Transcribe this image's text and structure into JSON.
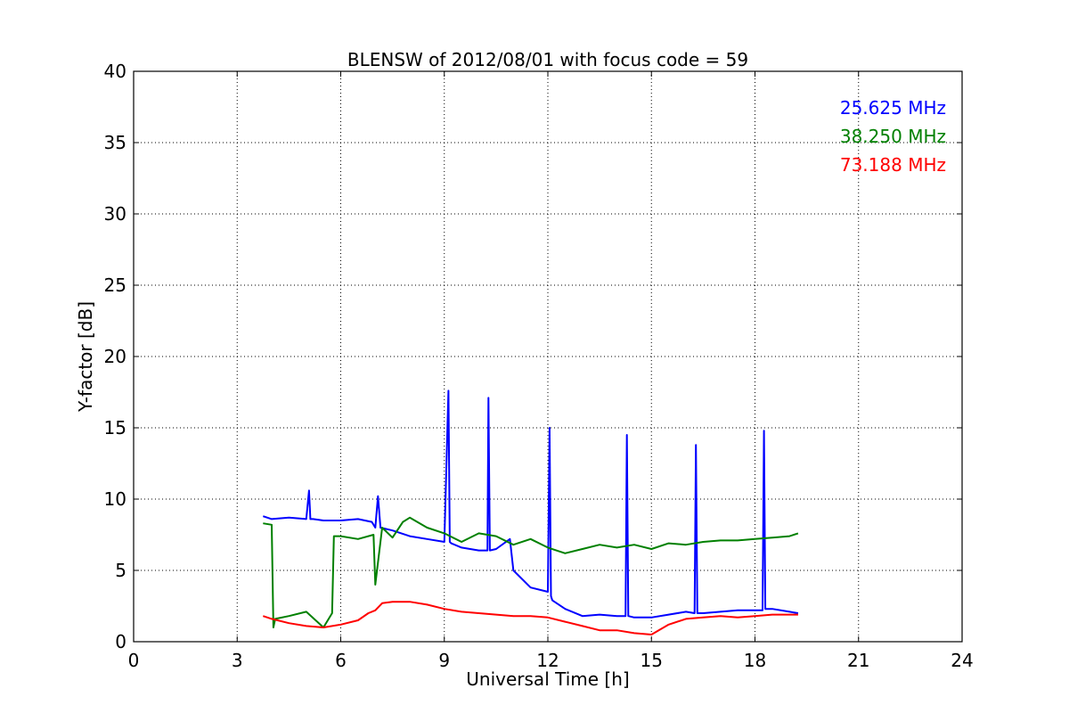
{
  "chart_data": {
    "type": "line",
    "title": "BLENSW of 2012/08/01 with focus code = 59",
    "xlabel": "Universal Time [h]",
    "ylabel": "Y-factor [dB]",
    "xlim": [
      0,
      24
    ],
    "ylim": [
      0,
      40
    ],
    "xticks": [
      0,
      3,
      6,
      9,
      12,
      15,
      18,
      21,
      24
    ],
    "yticks": [
      0,
      5,
      10,
      15,
      20,
      25,
      30,
      35,
      40
    ],
    "grid": true,
    "legend_position": "top-right",
    "series": [
      {
        "name": "25.625 MHz",
        "color": "#0000ff",
        "x": [
          3.75,
          4.0,
          4.5,
          5.0,
          5.08,
          5.12,
          5.2,
          5.5,
          6.0,
          6.5,
          6.9,
          7.0,
          7.08,
          7.15,
          7.5,
          8.0,
          8.5,
          9.0,
          9.12,
          9.16,
          9.2,
          9.5,
          10.0,
          10.25,
          10.28,
          10.32,
          10.5,
          10.9,
          11.0,
          11.5,
          12.0,
          12.05,
          12.09,
          12.13,
          12.5,
          13.0,
          13.5,
          14.0,
          14.25,
          14.29,
          14.33,
          14.5,
          15.0,
          15.5,
          16.0,
          16.25,
          16.29,
          16.33,
          16.5,
          17.0,
          17.5,
          18.0,
          18.22,
          18.26,
          18.3,
          18.5,
          19.0,
          19.25
        ],
        "y": [
          8.8,
          8.6,
          8.7,
          8.6,
          10.6,
          8.6,
          8.6,
          8.5,
          8.5,
          8.6,
          8.4,
          8.0,
          10.2,
          8.0,
          7.8,
          7.4,
          7.2,
          7.0,
          17.6,
          7.0,
          6.9,
          6.6,
          6.4,
          6.4,
          17.1,
          6.4,
          6.5,
          7.2,
          5.0,
          3.8,
          3.5,
          15.0,
          3.2,
          2.9,
          2.3,
          1.8,
          1.9,
          1.8,
          1.8,
          14.5,
          1.8,
          1.7,
          1.7,
          1.9,
          2.1,
          2.0,
          13.8,
          2.0,
          2.0,
          2.1,
          2.2,
          2.2,
          2.2,
          14.8,
          2.3,
          2.3,
          2.1,
          2.0
        ]
      },
      {
        "name": "38.250 MHz",
        "color": "#008000",
        "x": [
          3.75,
          4.0,
          4.05,
          4.1,
          4.5,
          5.0,
          5.5,
          5.75,
          5.8,
          6.0,
          6.5,
          6.95,
          7.0,
          7.2,
          7.5,
          7.8,
          8.0,
          8.5,
          9.0,
          9.5,
          10.0,
          10.5,
          11.0,
          11.5,
          12.0,
          12.5,
          13.0,
          13.5,
          14.0,
          14.5,
          15.0,
          15.5,
          16.0,
          16.5,
          17.0,
          17.5,
          18.0,
          18.5,
          19.0,
          19.25
        ],
        "y": [
          8.3,
          8.2,
          1.0,
          1.6,
          1.8,
          2.1,
          1.0,
          2.0,
          7.4,
          7.4,
          7.2,
          7.5,
          4.0,
          8.0,
          7.3,
          8.4,
          8.7,
          8.0,
          7.6,
          7.0,
          7.6,
          7.4,
          6.8,
          7.2,
          6.6,
          6.2,
          6.5,
          6.8,
          6.6,
          6.8,
          6.5,
          6.9,
          6.8,
          7.0,
          7.1,
          7.1,
          7.2,
          7.3,
          7.4,
          7.6
        ]
      },
      {
        "name": "73.188 MHz",
        "color": "#ff0000",
        "x": [
          3.75,
          4.0,
          4.5,
          5.0,
          5.5,
          6.0,
          6.5,
          6.8,
          7.0,
          7.2,
          7.5,
          8.0,
          8.5,
          9.0,
          9.5,
          10.0,
          10.5,
          11.0,
          11.5,
          12.0,
          12.5,
          13.0,
          13.5,
          14.0,
          14.5,
          15.0,
          15.5,
          16.0,
          16.5,
          17.0,
          17.5,
          18.0,
          18.5,
          19.0,
          19.25
        ],
        "y": [
          1.8,
          1.6,
          1.3,
          1.1,
          1.0,
          1.2,
          1.5,
          2.0,
          2.2,
          2.7,
          2.8,
          2.8,
          2.6,
          2.3,
          2.1,
          2.0,
          1.9,
          1.8,
          1.8,
          1.7,
          1.4,
          1.1,
          0.8,
          0.8,
          0.6,
          0.5,
          1.2,
          1.6,
          1.7,
          1.8,
          1.7,
          1.8,
          1.9,
          1.9,
          1.9
        ]
      }
    ]
  }
}
